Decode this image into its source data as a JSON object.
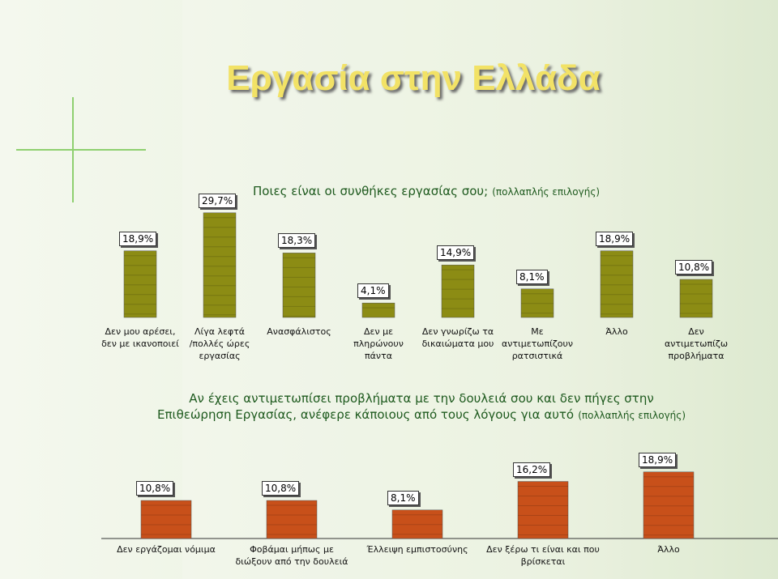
{
  "slide_title": "Εργασία στην Ελλάδα",
  "chart_data": [
    {
      "type": "bar",
      "title": "Ποιες είναι οι συνθήκες εργασίας σου;",
      "subtitle": "(πολλαπλής επιλογής)",
      "categories": [
        "Δεν μου αρέσει,\nδεν με ικανοποιεί",
        "Λίγα λεφτά\n/πολλές ώρες\nεργασίας",
        "Ανασφάλιστος",
        "Δεν με\nπληρώνουν\nπάντα",
        "Δεν γνωρίζω τα\nδικαιώματα μου",
        "Με\nαντιμετωπίζουν\nρατσιστικά",
        "Άλλο",
        "Δεν\nαντιμετωπίζω\nπροβλήματα"
      ],
      "values": [
        18.9,
        29.7,
        18.3,
        4.1,
        14.9,
        8.1,
        18.9,
        10.8
      ],
      "value_labels": [
        "18,9%",
        "29,7%",
        "18,3%",
        "4,1%",
        "14,9%",
        "8,1%",
        "18,9%",
        "10,8%"
      ],
      "color": "#8c8c14"
    },
    {
      "type": "bar",
      "title": "Αν έχεις αντιμετωπίσει προβλήματα με την δουλειά σου και δεν πήγες στην Επιθεώρηση Εργασίας, ανέφερε κάποιους από τους λόγους για αυτό",
      "subtitle": "(πολλαπλής επιλογής)",
      "categories": [
        "Δεν εργάζομαι νόμιμα",
        "Φοβάμαι μήπως με\nδιώξουν από την δουλειά",
        "Έλλειψη εμπιστοσύνης",
        "Δεν ξέρω τι είναι και που\nβρίσκεται",
        "Άλλο"
      ],
      "values": [
        10.8,
        10.8,
        8.1,
        16.2,
        18.9
      ],
      "value_labels": [
        "10,8%",
        "10,8%",
        "8,1%",
        "16,2%",
        "18,9%"
      ],
      "color": "#c8501a"
    }
  ]
}
